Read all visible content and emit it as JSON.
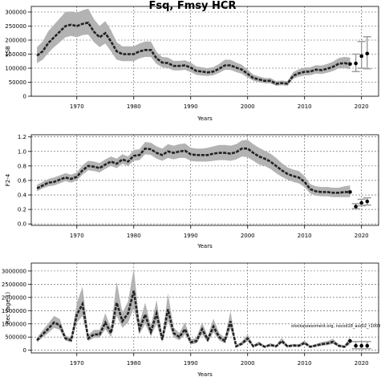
{
  "title": "Fsq, Fmsy HCR",
  "note": "stockassessment.org, nscod18_ass02_r1008",
  "chart_data": [
    {
      "type": "area",
      "xlabel": "Years",
      "ylabel": "SSB",
      "xlim": [
        1962,
        2023
      ],
      "ylim": [
        0,
        320000
      ],
      "grid": true,
      "x_ticks": [
        1970,
        1980,
        1990,
        2000,
        2010,
        2020
      ],
      "y_ticks": [
        "0",
        "50000",
        "100000",
        "150000",
        "200000",
        "250000",
        "300000"
      ],
      "y_tick_values": [
        0,
        50000,
        100000,
        150000,
        200000,
        250000,
        300000
      ],
      "x": [
        1963,
        1964,
        1965,
        1966,
        1967,
        1968,
        1969,
        1970,
        1971,
        1972,
        1973,
        1974,
        1975,
        1976,
        1977,
        1978,
        1979,
        1980,
        1981,
        1982,
        1983,
        1984,
        1985,
        1986,
        1987,
        1988,
        1989,
        1990,
        1991,
        1992,
        1993,
        1994,
        1995,
        1996,
        1997,
        1998,
        1999,
        2000,
        2001,
        2002,
        2003,
        2004,
        2005,
        2006,
        2007,
        2008,
        2009,
        2010,
        2011,
        2012,
        2013,
        2014,
        2015,
        2016,
        2017,
        2018
      ],
      "estimate": [
        145000,
        160000,
        190000,
        210000,
        230000,
        250000,
        255000,
        250000,
        258000,
        262000,
        230000,
        210000,
        225000,
        195000,
        160000,
        150000,
        150000,
        150000,
        160000,
        165000,
        165000,
        135000,
        120000,
        118000,
        108000,
        108000,
        110000,
        102000,
        90000,
        88000,
        85000,
        88000,
        98000,
        110000,
        110000,
        102000,
        95000,
        80000,
        65000,
        60000,
        55000,
        55000,
        45000,
        47000,
        45000,
        73000,
        82000,
        87000,
        88000,
        95000,
        93000,
        98000,
        105000,
        116000,
        118000,
        115000
      ],
      "lower": [
        118000,
        130000,
        155000,
        175000,
        192000,
        210000,
        215000,
        210000,
        218000,
        220000,
        193000,
        175000,
        188000,
        160000,
        130000,
        125000,
        125000,
        125000,
        135000,
        140000,
        140000,
        115000,
        103000,
        100000,
        92000,
        92000,
        94000,
        86000,
        76000,
        74000,
        72000,
        75000,
        83000,
        94000,
        94000,
        86000,
        80000,
        67000,
        55000,
        50000,
        46000,
        46000,
        37000,
        39000,
        37000,
        62000,
        70000,
        74000,
        75000,
        81000,
        79000,
        84000,
        90000,
        99000,
        100000,
        96000
      ],
      "upper": [
        175000,
        195000,
        232000,
        255000,
        278000,
        300000,
        302000,
        298000,
        306000,
        312000,
        275000,
        250000,
        268000,
        235000,
        193000,
        178000,
        178000,
        178000,
        188000,
        195000,
        195000,
        158000,
        140000,
        138000,
        126000,
        126000,
        128000,
        120000,
        106000,
        103000,
        100000,
        104000,
        115000,
        130000,
        130000,
        120000,
        112000,
        95000,
        77000,
        71000,
        65000,
        65000,
        54000,
        56000,
        54000,
        86000,
        96000,
        102000,
        103000,
        111000,
        109000,
        115000,
        123000,
        136000,
        140000,
        138000
      ],
      "forecast": [
        {
          "x": 2019,
          "y": 117000,
          "lo": 88000,
          "hi": 150000
        },
        {
          "x": 2020,
          "y": 143000,
          "lo": 100000,
          "hi": 195000
        },
        {
          "x": 2021,
          "y": 152000,
          "lo": 98000,
          "hi": 212000
        }
      ]
    },
    {
      "type": "area",
      "xlabel": "Years",
      "ylabel": "F2-4",
      "xlim": [
        1962,
        2023
      ],
      "ylim": [
        -0.02,
        1.23
      ],
      "grid": true,
      "x_ticks": [
        1970,
        1980,
        1990,
        2000,
        2010,
        2020
      ],
      "y_ticks": [
        "0.0",
        "0.2",
        "0.4",
        "0.6",
        "0.8",
        "1.0",
        "1.2"
      ],
      "y_tick_values": [
        0,
        0.2,
        0.4,
        0.6,
        0.8,
        1.0,
        1.2
      ],
      "x": [
        1963,
        1964,
        1965,
        1966,
        1967,
        1968,
        1969,
        1970,
        1971,
        1972,
        1973,
        1974,
        1975,
        1976,
        1977,
        1978,
        1979,
        1980,
        1981,
        1982,
        1983,
        1984,
        1985,
        1986,
        1987,
        1988,
        1989,
        1990,
        1991,
        1992,
        1993,
        1994,
        1995,
        1996,
        1997,
        1998,
        1999,
        2000,
        2001,
        2002,
        2003,
        2004,
        2005,
        2006,
        2007,
        2008,
        2009,
        2010,
        2011,
        2012,
        2013,
        2014,
        2015,
        2016,
        2017,
        2018
      ],
      "estimate": [
        0.49,
        0.53,
        0.57,
        0.58,
        0.61,
        0.64,
        0.62,
        0.65,
        0.74,
        0.8,
        0.79,
        0.77,
        0.82,
        0.86,
        0.83,
        0.89,
        0.86,
        0.94,
        0.95,
        1.04,
        1.03,
        0.98,
        0.95,
        1.0,
        0.98,
        1.0,
        1.01,
        0.96,
        0.95,
        0.95,
        0.95,
        0.97,
        0.98,
        0.98,
        0.97,
        0.99,
        1.04,
        1.04,
        0.98,
        0.93,
        0.9,
        0.86,
        0.8,
        0.74,
        0.69,
        0.66,
        0.64,
        0.58,
        0.48,
        0.45,
        0.44,
        0.44,
        0.43,
        0.43,
        0.44,
        0.44
      ],
      "lower": [
        0.45,
        0.49,
        0.52,
        0.53,
        0.56,
        0.59,
        0.57,
        0.6,
        0.68,
        0.74,
        0.73,
        0.71,
        0.76,
        0.8,
        0.77,
        0.83,
        0.8,
        0.87,
        0.88,
        0.96,
        0.95,
        0.9,
        0.87,
        0.91,
        0.89,
        0.91,
        0.91,
        0.87,
        0.86,
        0.86,
        0.86,
        0.87,
        0.88,
        0.88,
        0.87,
        0.89,
        0.93,
        0.92,
        0.87,
        0.82,
        0.8,
        0.76,
        0.7,
        0.65,
        0.61,
        0.58,
        0.56,
        0.51,
        0.42,
        0.39,
        0.38,
        0.38,
        0.37,
        0.37,
        0.37,
        0.37
      ],
      "upper": [
        0.54,
        0.58,
        0.62,
        0.64,
        0.67,
        0.7,
        0.68,
        0.71,
        0.81,
        0.87,
        0.86,
        0.84,
        0.89,
        0.93,
        0.9,
        0.96,
        0.93,
        1.02,
        1.03,
        1.13,
        1.12,
        1.07,
        1.04,
        1.1,
        1.08,
        1.1,
        1.11,
        1.05,
        1.04,
        1.04,
        1.05,
        1.07,
        1.09,
        1.09,
        1.08,
        1.1,
        1.15,
        1.16,
        1.1,
        1.05,
        1.01,
        0.97,
        0.91,
        0.84,
        0.78,
        0.75,
        0.73,
        0.66,
        0.55,
        0.52,
        0.51,
        0.51,
        0.5,
        0.5,
        0.52,
        0.53
      ],
      "forecast": [
        {
          "x": 2019,
          "y": 0.24,
          "lo": 0.21,
          "hi": 0.28
        },
        {
          "x": 2020,
          "y": 0.29,
          "lo": 0.25,
          "hi": 0.34
        },
        {
          "x": 2021,
          "y": 0.31,
          "lo": 0.26,
          "hi": 0.36
        }
      ]
    },
    {
      "type": "area",
      "xlabel": "Years",
      "ylabel": "Rec (age 1)",
      "xlim": [
        1962,
        2023
      ],
      "ylim": [
        -100000,
        3300000
      ],
      "grid": true,
      "x_ticks": [
        1970,
        1980,
        1990,
        2000,
        2010,
        2020
      ],
      "y_ticks": [
        "0",
        "500000",
        "1000000",
        "1500000",
        "2000000",
        "2500000",
        "3000000"
      ],
      "y_tick_values": [
        0,
        500000,
        1000000,
        1500000,
        2000000,
        2500000,
        3000000
      ],
      "x": [
        1963,
        1964,
        1965,
        1966,
        1967,
        1968,
        1969,
        1970,
        1971,
        1972,
        1973,
        1974,
        1975,
        1976,
        1977,
        1978,
        1979,
        1980,
        1981,
        1982,
        1983,
        1984,
        1985,
        1986,
        1987,
        1988,
        1989,
        1990,
        1991,
        1992,
        1993,
        1994,
        1995,
        1996,
        1997,
        1998,
        1999,
        2000,
        2001,
        2002,
        2003,
        2004,
        2005,
        2006,
        2007,
        2008,
        2009,
        2010,
        2011,
        2012,
        2013,
        2014,
        2015,
        2016,
        2017,
        2018
      ],
      "estimate": [
        380000,
        600000,
        820000,
        1050000,
        950000,
        450000,
        380000,
        1350000,
        1750000,
        450000,
        600000,
        600000,
        1050000,
        650000,
        1800000,
        1100000,
        1400000,
        2250000,
        800000,
        1350000,
        700000,
        1400000,
        400000,
        1550000,
        650000,
        500000,
        800000,
        300000,
        350000,
        800000,
        400000,
        900000,
        500000,
        350000,
        1100000,
        150000,
        250000,
        450000,
        150000,
        250000,
        130000,
        200000,
        150000,
        350000,
        150000,
        180000,
        170000,
        280000,
        130000,
        180000,
        230000,
        260000,
        320000,
        170000,
        130000,
        350000
      ],
      "lower": [
        300000,
        480000,
        660000,
        850000,
        770000,
        360000,
        300000,
        1050000,
        1300000,
        350000,
        470000,
        470000,
        800000,
        500000,
        1300000,
        850000,
        1050000,
        1600000,
        600000,
        1000000,
        530000,
        1000000,
        300000,
        1100000,
        490000,
        380000,
        600000,
        220000,
        260000,
        600000,
        300000,
        680000,
        380000,
        260000,
        820000,
        110000,
        190000,
        340000,
        110000,
        190000,
        95000,
        150000,
        110000,
        260000,
        110000,
        135000,
        125000,
        210000,
        95000,
        135000,
        170000,
        190000,
        240000,
        125000,
        90000,
        230000
      ],
      "upper": [
        480000,
        760000,
        1020000,
        1300000,
        1180000,
        560000,
        480000,
        1800000,
        2400000,
        580000,
        770000,
        770000,
        1400000,
        850000,
        2600000,
        1420000,
        1850000,
        3100000,
        1050000,
        1800000,
        920000,
        1900000,
        530000,
        2150000,
        860000,
        660000,
        1060000,
        410000,
        470000,
        1060000,
        530000,
        1200000,
        660000,
        470000,
        1480000,
        200000,
        330000,
        600000,
        200000,
        330000,
        175000,
        270000,
        200000,
        470000,
        200000,
        240000,
        230000,
        370000,
        175000,
        240000,
        310000,
        350000,
        430000,
        230000,
        185000,
        520000
      ],
      "forecast": [
        {
          "x": 2019,
          "y": 170000,
          "lo": 60000,
          "hi": 330000
        },
        {
          "x": 2020,
          "y": 170000,
          "lo": 60000,
          "hi": 330000
        },
        {
          "x": 2021,
          "y": 170000,
          "lo": 60000,
          "hi": 330000
        }
      ]
    }
  ]
}
